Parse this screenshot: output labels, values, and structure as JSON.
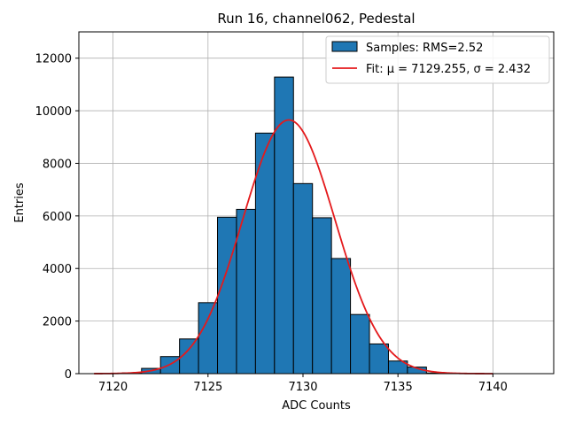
{
  "chart_data": {
    "type": "bar",
    "title": "Run 16, channel062, Pedestal",
    "xlabel": "ADC Counts",
    "ylabel": "Entries",
    "xlim": [
      7118.2,
      7143.2
    ],
    "ylim": [
      0,
      13000
    ],
    "xticks": [
      7120,
      7125,
      7130,
      7135,
      7140
    ],
    "yticks": [
      0,
      2000,
      4000,
      6000,
      8000,
      10000,
      12000
    ],
    "grid": true,
    "legend_position": "top-right",
    "bin_width": 1,
    "bins": [
      {
        "x": 7121,
        "value": 30
      },
      {
        "x": 7122,
        "value": 200
      },
      {
        "x": 7123,
        "value": 650
      },
      {
        "x": 7124,
        "value": 1320
      },
      {
        "x": 7125,
        "value": 2700
      },
      {
        "x": 7126,
        "value": 5950
      },
      {
        "x": 7127,
        "value": 6250
      },
      {
        "x": 7128,
        "value": 9150
      },
      {
        "x": 7129,
        "value": 11280
      },
      {
        "x": 7130,
        "value": 7230
      },
      {
        "x": 7131,
        "value": 5930
      },
      {
        "x": 7132,
        "value": 4380
      },
      {
        "x": 7133,
        "value": 2250
      },
      {
        "x": 7134,
        "value": 1130
      },
      {
        "x": 7135,
        "value": 480
      },
      {
        "x": 7136,
        "value": 250
      },
      {
        "x": 7137,
        "value": 25
      }
    ],
    "fit": {
      "mu": 7129.255,
      "sigma": 2.432,
      "amplitude": 9650,
      "x_range": [
        7119,
        7140
      ]
    },
    "series": [
      {
        "name": "Samples: RMS=2.52",
        "color": "#1f77b4",
        "kind": "histogram"
      },
      {
        "name": "Fit: μ = 7129.255, σ = 2.432",
        "color": "#e41a1c",
        "kind": "line"
      }
    ]
  }
}
